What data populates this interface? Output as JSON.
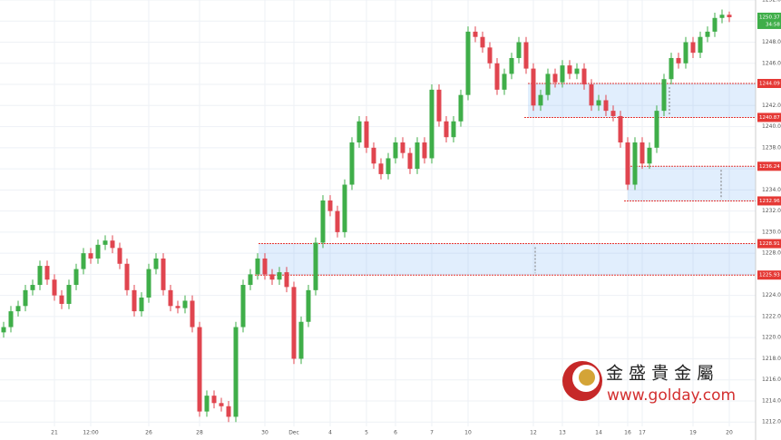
{
  "chart_data": {
    "type": "candlestick",
    "categories": [
      null,
      null,
      null,
      null,
      null,
      null,
      null,
      "21",
      null,
      null,
      null,
      null,
      "12:00",
      null,
      null,
      null,
      null,
      null,
      null,
      null,
      "26",
      null,
      null,
      null,
      null,
      null,
      null,
      "28",
      null,
      null,
      null,
      null,
      null,
      null,
      null,
      null,
      "30",
      null,
      null,
      null,
      "Dec",
      null,
      null,
      null,
      null,
      "4",
      null,
      null,
      null,
      null,
      "5",
      null,
      null,
      null,
      "6",
      null,
      null,
      null,
      null,
      "7",
      null,
      null,
      null,
      null,
      "10",
      null,
      null,
      null,
      null,
      null,
      null,
      null,
      null,
      "12",
      null,
      null,
      null,
      "13",
      null,
      null,
      null,
      null,
      "14",
      null,
      null,
      null,
      "16",
      null,
      "17",
      null,
      null,
      null,
      null,
      null,
      null,
      "19",
      null,
      null,
      null,
      null,
      "20"
    ],
    "open": [
      1220.5,
      1221.0,
      1222.5,
      1223.0,
      1224.5,
      1225.0,
      1226.8,
      1225.5,
      1224.0,
      1223.2,
      1225.0,
      1226.5,
      1228.0,
      1227.5,
      1228.8,
      1229.2,
      1228.5,
      1227.0,
      1224.5,
      1222.5,
      1223.8,
      1226.5,
      1227.5,
      1224.5,
      1223.0,
      1222.8,
      1223.5,
      1221.0,
      1213.0,
      1214.5,
      1213.8,
      1213.5,
      1212.5,
      1221.0,
      1225.0,
      1226.0,
      1227.5,
      1226.0,
      1225.5,
      1226.2,
      1224.8,
      1218.0,
      1221.5,
      1224.5,
      1229.0,
      1233.0,
      1232.0,
      1230.0,
      1234.5,
      1238.5,
      1240.5,
      1238.0,
      1236.5,
      1235.5,
      1237.0,
      1238.5,
      1237.5,
      1236.0,
      1238.5,
      1237.0,
      1243.5,
      1240.5,
      1239.0,
      1240.5,
      1243.0,
      1249.0,
      1248.5,
      1247.5,
      1246.0,
      1243.5,
      1245.0,
      1246.5,
      1248.0,
      1245.5,
      1242.0,
      1243.0,
      1245.0,
      1244.2,
      1245.8,
      1245.0,
      1245.5,
      1244.0,
      1242.0,
      1242.5,
      1241.5,
      1241.0,
      1238.5,
      1234.5,
      1238.5,
      1236.5,
      1238.0,
      1241.5,
      1244.5,
      1246.5,
      1246.0,
      1248.0,
      1247.0,
      1248.5,
      1249.0,
      1250.3,
      1250.6
    ],
    "high": [
      1221.5,
      1223.0,
      1223.5,
      1225.0,
      1225.5,
      1227.3,
      1227.3,
      1226.0,
      1224.5,
      1225.5,
      1227.0,
      1228.5,
      1228.5,
      1229.3,
      1229.7,
      1229.7,
      1229.0,
      1227.5,
      1225.0,
      1224.3,
      1227.0,
      1228.0,
      1228.0,
      1225.0,
      1223.5,
      1224.0,
      1224.0,
      1221.5,
      1215.0,
      1215.0,
      1214.3,
      1214.0,
      1221.5,
      1225.5,
      1226.5,
      1228.0,
      1228.0,
      1226.5,
      1226.7,
      1226.7,
      1225.3,
      1222.0,
      1225.0,
      1229.5,
      1233.5,
      1233.5,
      1232.5,
      1235.0,
      1239.0,
      1241.0,
      1241.0,
      1238.5,
      1237.0,
      1237.5,
      1239.0,
      1239.0,
      1238.0,
      1239.0,
      1239.0,
      1244.0,
      1244.0,
      1241.0,
      1241.0,
      1243.5,
      1249.5,
      1249.5,
      1249.0,
      1248.0,
      1246.5,
      1245.5,
      1247.0,
      1248.5,
      1248.5,
      1246.0,
      1243.5,
      1245.5,
      1245.5,
      1246.3,
      1246.3,
      1246.0,
      1246.0,
      1244.5,
      1243.0,
      1243.0,
      1242.0,
      1241.5,
      1239.0,
      1239.0,
      1239.0,
      1238.5,
      1242.0,
      1245.0,
      1247.0,
      1247.0,
      1248.5,
      1248.5,
      1249.0,
      1249.5,
      1250.8,
      1251.1,
      1250.9
    ],
    "low": [
      1220.0,
      1220.5,
      1222.0,
      1222.5,
      1224.0,
      1224.5,
      1225.0,
      1223.5,
      1222.7,
      1222.7,
      1224.5,
      1226.0,
      1227.0,
      1227.0,
      1228.3,
      1228.0,
      1226.5,
      1224.0,
      1222.0,
      1222.0,
      1223.3,
      1226.0,
      1224.0,
      1222.5,
      1222.3,
      1222.3,
      1220.5,
      1212.5,
      1212.5,
      1213.3,
      1213.0,
      1212.0,
      1212.0,
      1220.5,
      1224.5,
      1225.5,
      1225.5,
      1225.0,
      1225.0,
      1224.3,
      1217.5,
      1217.5,
      1221.0,
      1224.0,
      1228.5,
      1231.5,
      1229.5,
      1229.5,
      1234.0,
      1238.0,
      1237.5,
      1236.0,
      1235.0,
      1235.0,
      1236.5,
      1237.0,
      1235.5,
      1235.5,
      1236.5,
      1236.5,
      1240.0,
      1238.5,
      1238.5,
      1240.0,
      1242.5,
      1248.0,
      1247.0,
      1245.5,
      1243.0,
      1243.0,
      1244.5,
      1246.0,
      1245.0,
      1241.5,
      1241.5,
      1242.5,
      1243.7,
      1243.7,
      1244.5,
      1244.5,
      1243.5,
      1241.5,
      1241.5,
      1241.0,
      1240.5,
      1238.0,
      1234.0,
      1234.0,
      1236.0,
      1236.0,
      1237.5,
      1241.0,
      1244.0,
      1245.5,
      1245.5,
      1246.5,
      1246.5,
      1248.0,
      1248.5,
      1249.8,
      1249.9
    ],
    "close": [
      1221.0,
      1222.5,
      1223.0,
      1224.5,
      1225.0,
      1226.8,
      1225.5,
      1224.0,
      1223.2,
      1225.0,
      1226.5,
      1228.0,
      1227.5,
      1228.8,
      1229.2,
      1228.5,
      1227.0,
      1224.5,
      1222.5,
      1223.8,
      1226.5,
      1227.5,
      1224.5,
      1223.0,
      1222.8,
      1223.5,
      1221.0,
      1213.0,
      1214.5,
      1213.8,
      1213.5,
      1212.5,
      1221.0,
      1225.0,
      1226.0,
      1227.5,
      1226.0,
      1225.5,
      1226.2,
      1224.8,
      1218.0,
      1221.5,
      1224.5,
      1229.0,
      1233.0,
      1232.0,
      1230.0,
      1234.5,
      1238.5,
      1240.5,
      1238.0,
      1236.5,
      1235.5,
      1237.0,
      1238.5,
      1237.5,
      1236.0,
      1238.5,
      1237.0,
      1243.5,
      1240.5,
      1239.0,
      1240.5,
      1243.0,
      1249.0,
      1248.5,
      1247.5,
      1246.0,
      1243.5,
      1245.0,
      1246.5,
      1248.0,
      1245.5,
      1242.0,
      1243.0,
      1245.0,
      1244.2,
      1245.8,
      1245.0,
      1245.5,
      1244.0,
      1242.0,
      1242.5,
      1241.5,
      1241.0,
      1238.5,
      1234.5,
      1238.5,
      1236.5,
      1238.0,
      1241.5,
      1244.5,
      1246.5,
      1246.0,
      1248.0,
      1247.0,
      1248.5,
      1249.0,
      1250.3,
      1250.6,
      1250.37
    ],
    "up_color": "#3fae49",
    "down_color": "#e0454f",
    "ylim": [
      1210.3,
      1252
    ],
    "yticks": [
      {
        "value": 1210,
        "label": "1210.00"
      },
      {
        "value": 1212,
        "label": "1212.00"
      },
      {
        "value": 1214,
        "label": "1214.00"
      },
      {
        "value": 1216,
        "label": "1216.00"
      },
      {
        "value": 1218,
        "label": "1218.00"
      },
      {
        "value": 1220,
        "label": "1220.00"
      },
      {
        "value": 1222,
        "label": "1222.00"
      },
      {
        "value": 1224,
        "label": "1224.00"
      },
      {
        "value": 1226,
        "label": "1226.00"
      },
      {
        "value": 1228,
        "label": "1228.00"
      },
      {
        "value": 1230,
        "label": "1230.00"
      },
      {
        "value": 1232,
        "label": "1232.00"
      },
      {
        "value": 1234,
        "label": "1234.00"
      },
      {
        "value": 1236,
        "label": "1236.00"
      },
      {
        "value": 1238,
        "label": "1238.00"
      },
      {
        "value": 1240,
        "label": "1240.00"
      },
      {
        "value": 1242,
        "label": "1242.00"
      },
      {
        "value": 1244,
        "label": "1244.00"
      },
      {
        "value": 1246,
        "label": "1246.00"
      },
      {
        "value": 1248,
        "label": "1248.00"
      },
      {
        "value": 1250,
        "label": "1250.00"
      },
      {
        "value": 1252,
        "label": "1252.00"
      }
    ],
    "grid": true,
    "zones": [
      {
        "top": 1244.09,
        "bottom": 1240.87
      },
      {
        "top": 1236.24,
        "bottom": 1232.96
      },
      {
        "top": 1228.91,
        "bottom": 1225.93
      }
    ],
    "zone_color": "#e53935",
    "price_tag": 1250.37,
    "price_tag_color": "#3fae49",
    "countdown": "34:58",
    "watermark": {
      "name": "金 盛 貴 金 屬",
      "url": "www.golday.com"
    }
  }
}
